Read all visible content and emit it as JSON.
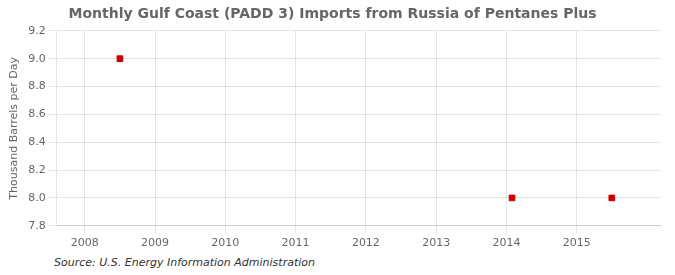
{
  "chart_data": {
    "type": "scatter",
    "title": "Monthly Gulf Coast (PADD 3) Imports from Russia of Pentanes Plus",
    "ylabel": "Thousand Barrels per Day",
    "source": "Source: U.S. Energy Information Administration",
    "x": [
      2008.5,
      2014.08,
      2015.5
    ],
    "values": [
      9.0,
      8.0,
      8.0
    ],
    "color": "#cc0000",
    "marker": "square",
    "xlim": [
      2007.6,
      2016.2
    ],
    "xticks": [
      2008,
      2009,
      2010,
      2011,
      2012,
      2013,
      2014,
      2015
    ],
    "ylim": [
      7.8,
      9.2
    ],
    "yticks": [
      7.8,
      {
        "value": 8.0,
        "label": "8.0"
      },
      8.2,
      8.4,
      8.6,
      8.8,
      {
        "value": 9.0,
        "label": "9.0"
      },
      9.2
    ],
    "grid": true
  }
}
